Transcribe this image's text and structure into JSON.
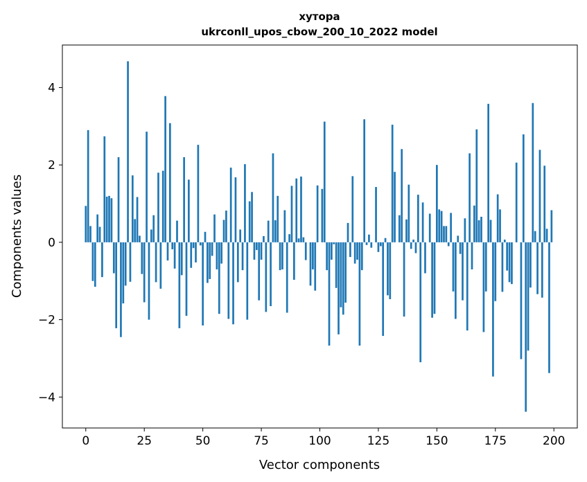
{
  "chart_data": {
    "type": "bar",
    "title": "хутора",
    "subtitle": "ukrconll_upos_cbow_200_10_2022 model",
    "xlabel": "Vector components",
    "ylabel": "Components values",
    "xlim": [
      -10,
      210
    ],
    "ylim": [
      -4.8,
      5.1
    ],
    "xticks": [
      0,
      25,
      50,
      75,
      100,
      125,
      150,
      175,
      200
    ],
    "yticks": [
      -4,
      -2,
      0,
      2,
      4
    ],
    "xtick_labels": [
      "0",
      "25",
      "50",
      "75",
      "100",
      "125",
      "150",
      "175",
      "200"
    ],
    "ytick_labels": [
      "−4",
      "−2",
      "0",
      "2",
      "4"
    ],
    "grid": false,
    "bar_color": "#1f77b4",
    "x": [
      0,
      1,
      2,
      3,
      4,
      5,
      6,
      7,
      8,
      9,
      10,
      11,
      12,
      13,
      14,
      15,
      16,
      17,
      18,
      19,
      20,
      21,
      22,
      23,
      24,
      25,
      26,
      27,
      28,
      29,
      30,
      31,
      32,
      33,
      34,
      35,
      36,
      37,
      38,
      39,
      40,
      41,
      42,
      43,
      44,
      45,
      46,
      47,
      48,
      49,
      50,
      51,
      52,
      53,
      54,
      55,
      56,
      57,
      58,
      59,
      60,
      61,
      62,
      63,
      64,
      65,
      66,
      67,
      68,
      69,
      70,
      71,
      72,
      73,
      74,
      75,
      76,
      77,
      78,
      79,
      80,
      81,
      82,
      83,
      84,
      85,
      86,
      87,
      88,
      89,
      90,
      91,
      92,
      93,
      94,
      95,
      96,
      97,
      98,
      99,
      100,
      101,
      102,
      103,
      104,
      105,
      106,
      107,
      108,
      109,
      110,
      111,
      112,
      113,
      114,
      115,
      116,
      117,
      118,
      119,
      120,
      121,
      122,
      123,
      124,
      125,
      126,
      127,
      128,
      129,
      130,
      131,
      132,
      133,
      134,
      135,
      136,
      137,
      138,
      139,
      140,
      141,
      142,
      143,
      144,
      145,
      146,
      147,
      148,
      149,
      150,
      151,
      152,
      153,
      154,
      155,
      156,
      157,
      158,
      159,
      160,
      161,
      162,
      163,
      164,
      165,
      166,
      167,
      168,
      169,
      170,
      171,
      172,
      173,
      174,
      175,
      176,
      177,
      178,
      179,
      180,
      181,
      182,
      183,
      184,
      185,
      186,
      187,
      188,
      189,
      190,
      191,
      192,
      193,
      194,
      195,
      196,
      197,
      198,
      199
    ],
    "values": [
      0.94,
      2.9,
      0.42,
      -1.0,
      -1.15,
      0.72,
      0.4,
      -0.9,
      2.74,
      1.18,
      1.2,
      1.14,
      -0.8,
      -2.22,
      2.2,
      -2.45,
      -1.58,
      -1.12,
      4.68,
      -1.02,
      1.73,
      0.6,
      1.17,
      0.17,
      -0.82,
      -1.55,
      2.86,
      -2.0,
      0.33,
      0.7,
      -1.03,
      1.8,
      -1.2,
      1.85,
      3.78,
      -0.47,
      3.08,
      -0.18,
      -0.68,
      0.56,
      -2.22,
      -0.85,
      2.2,
      -1.9,
      1.62,
      -0.66,
      -0.15,
      -0.52,
      2.52,
      -0.08,
      -2.15,
      0.27,
      -1.05,
      -0.95,
      -0.35,
      0.72,
      -0.7,
      -1.85,
      -0.55,
      0.58,
      0.82,
      -1.98,
      1.93,
      -2.12,
      1.68,
      -1.03,
      0.33,
      -0.72,
      2.02,
      -2.0,
      1.06,
      1.3,
      -0.45,
      -0.2,
      -1.5,
      -0.45,
      0.16,
      -1.8,
      0.56,
      -1.65,
      2.3,
      0.57,
      1.2,
      -0.72,
      -0.7,
      0.83,
      -1.82,
      0.21,
      1.46,
      -0.97,
      1.65,
      0.1,
      1.7,
      0.13,
      -0.46,
      0.0,
      -1.12,
      -0.7,
      -1.25,
      1.47,
      0.0,
      1.38,
      3.12,
      -0.72,
      -2.67,
      -0.45,
      -0.05,
      -1.18,
      -2.38,
      -1.68,
      -1.87,
      -1.56,
      0.5,
      -0.38,
      1.71,
      -0.55,
      -0.45,
      -2.67,
      -0.72,
      3.18,
      -0.07,
      0.2,
      -0.14,
      0.0,
      1.43,
      -0.25,
      -0.1,
      -2.42,
      0.11,
      -1.37,
      -1.47,
      3.04,
      1.82,
      -0.0,
      0.7,
      2.41,
      -1.92,
      0.59,
      1.49,
      -0.17,
      0.07,
      -0.28,
      1.23,
      -3.1,
      1.03,
      -0.8,
      0.0,
      0.74,
      -1.95,
      -1.85,
      2.0,
      0.85,
      0.81,
      0.42,
      0.42,
      -0.1,
      0.76,
      -1.27,
      -1.98,
      0.17,
      -0.3,
      -1.5,
      0.62,
      -2.28,
      2.3,
      -0.7,
      0.95,
      2.92,
      0.57,
      0.66,
      -2.32,
      -1.27,
      3.58,
      0.58,
      -3.47,
      -1.52,
      1.24,
      0.85,
      -1.28,
      0.07,
      -0.73,
      -1.03,
      -1.08,
      0.0,
      2.06,
      0.0,
      -3.02,
      2.79,
      -4.38,
      -2.8,
      -1.17,
      3.6,
      0.29,
      -1.34,
      2.39,
      -1.43,
      1.98,
      0.35,
      -3.38,
      0.83
    ]
  }
}
